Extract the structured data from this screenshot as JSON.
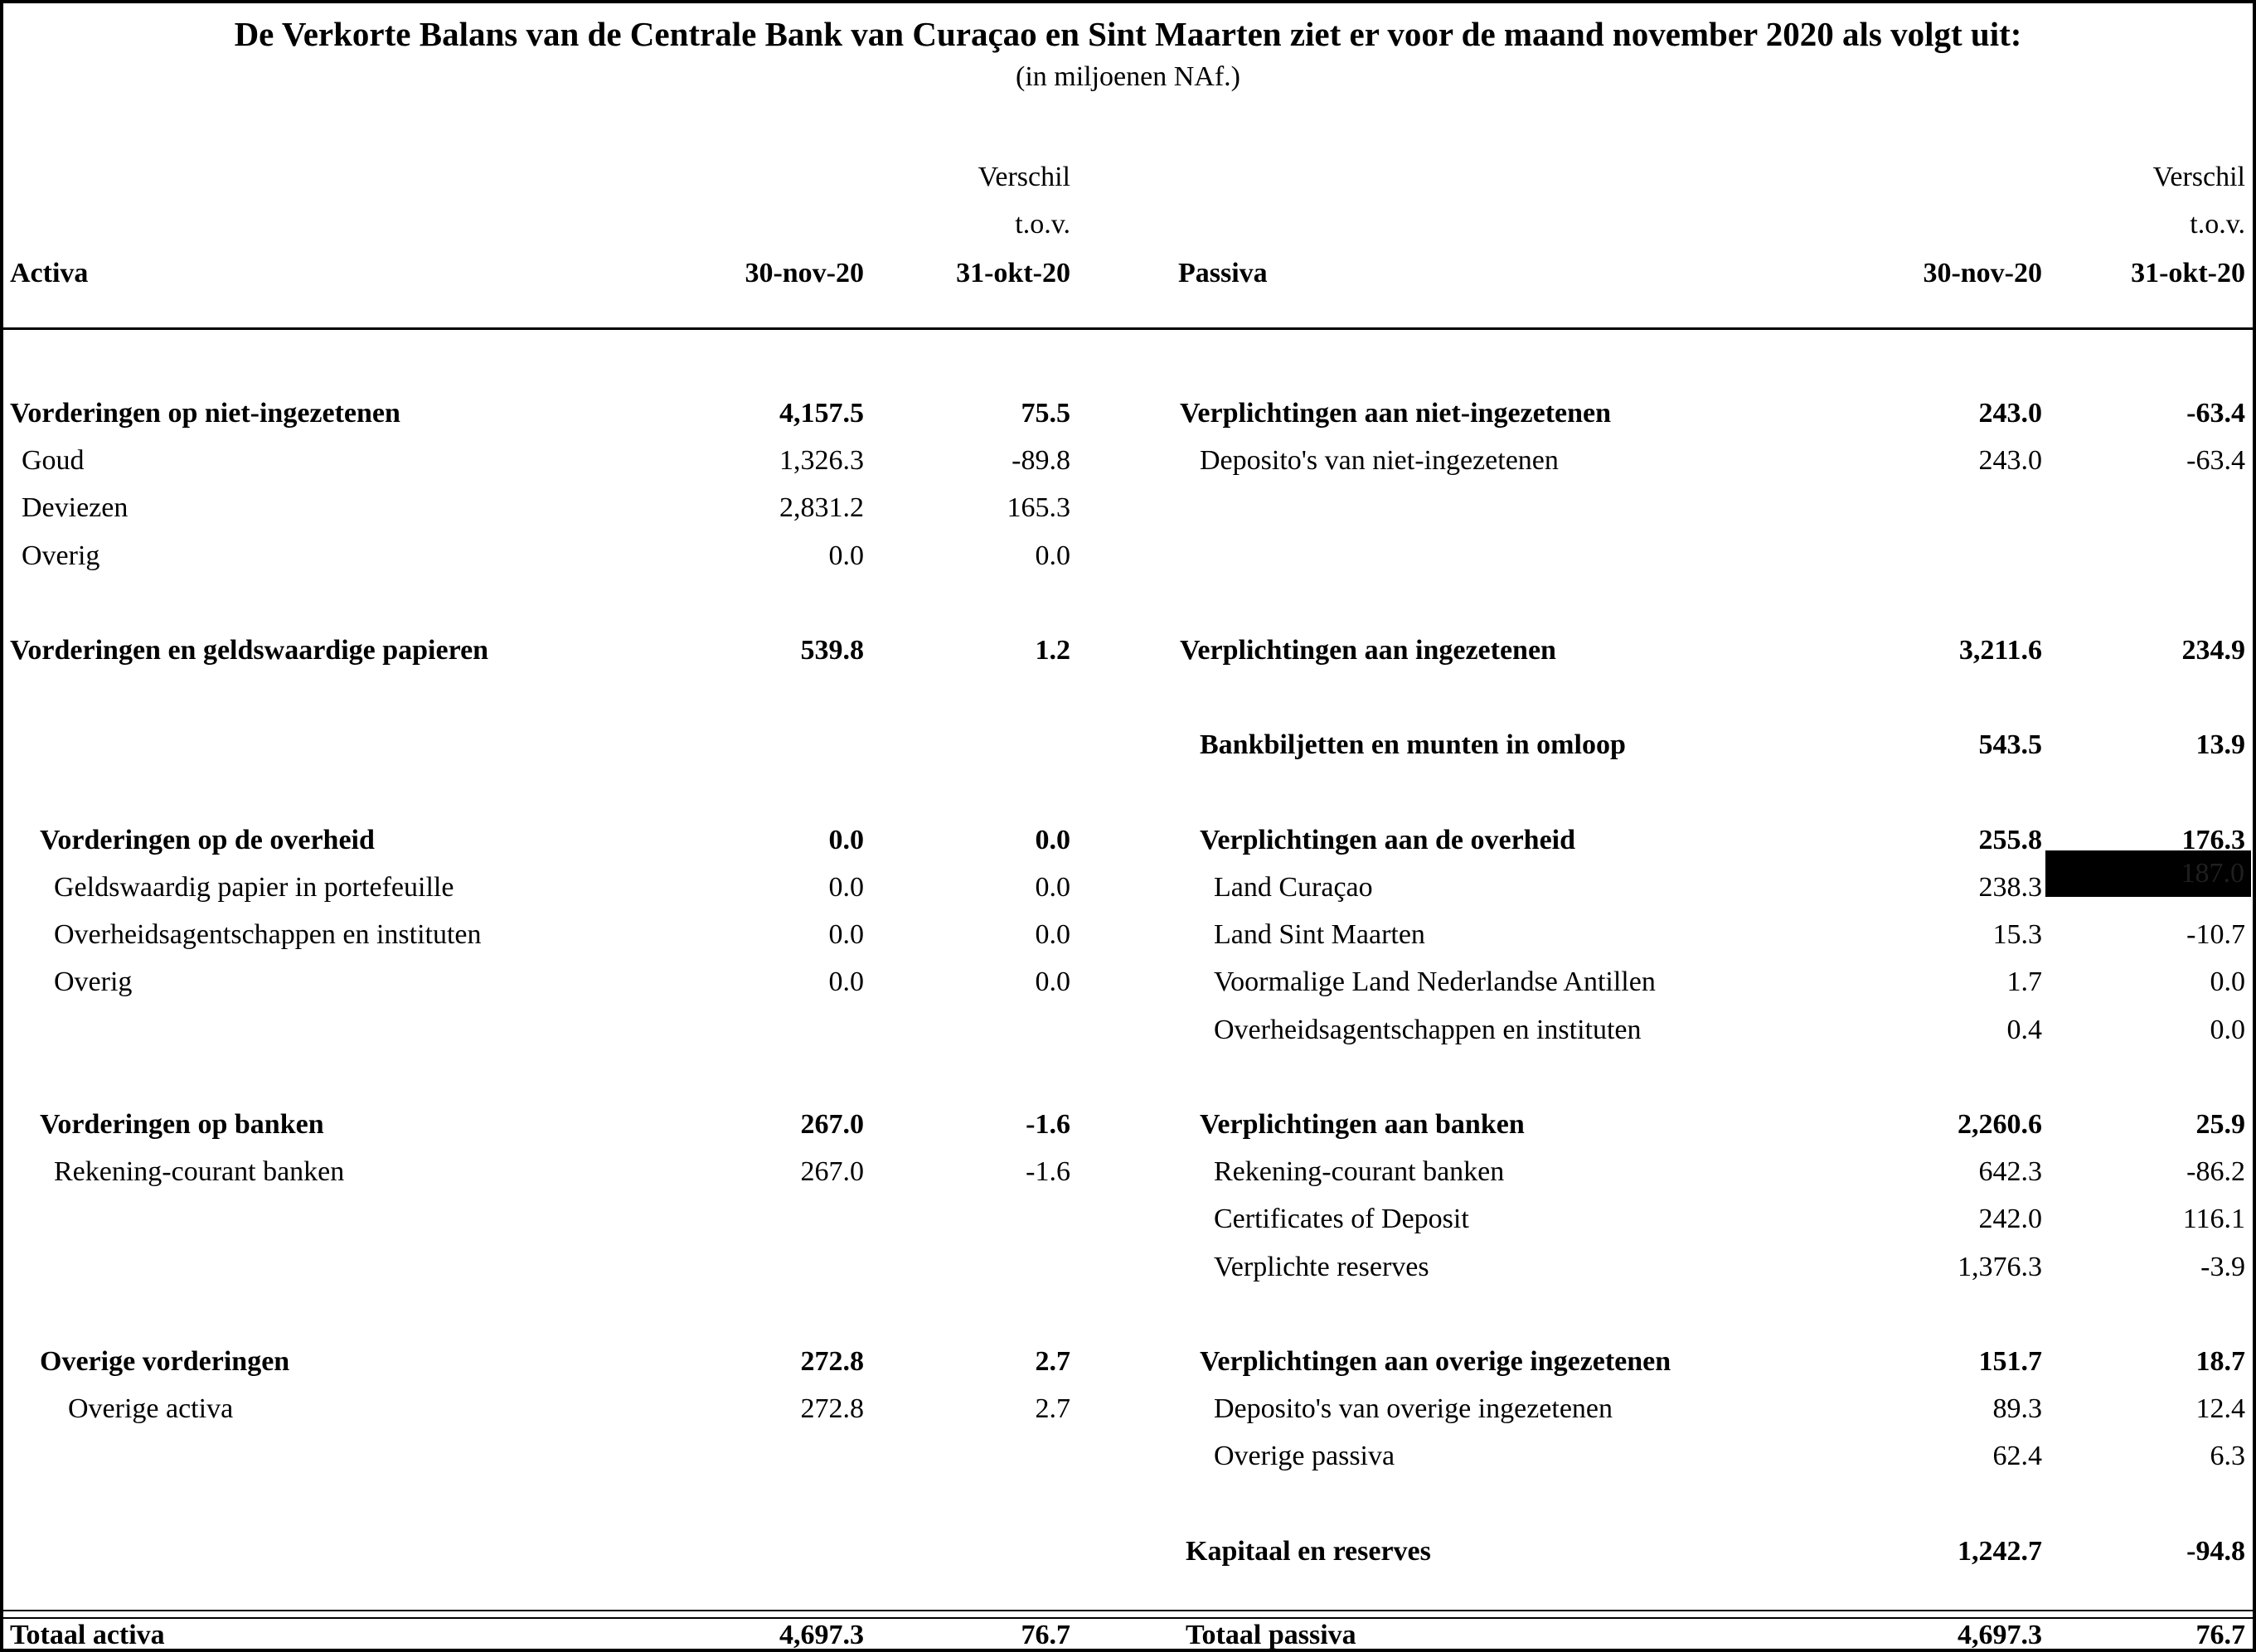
{
  "title": "De Verkorte Balans van de Centrale Bank van Curaçao en Sint Maarten ziet er voor de maand november 2020 als volgt uit:",
  "subtitle": "(in miljoenen NAf.)",
  "columns": {
    "verschil": "Verschil",
    "tov": "t.o.v.",
    "date_current": "30-nov-20",
    "date_prev": "31-okt-20"
  },
  "left": {
    "heading": "Activa",
    "total": {
      "label": "Totaal activa",
      "v1": "4,697.3",
      "v2": "76.7"
    }
  },
  "right": {
    "heading": "Passiva",
    "total": {
      "label": "Totaal passiva",
      "v1": "4,697.3",
      "v2": "76.7"
    }
  },
  "colors": {
    "text": "#000000",
    "background": "#ffffff",
    "redaction_box": "#000000",
    "redaction_faint_text": "#1f1f1f"
  },
  "slots": [
    {
      "left": {
        "label": "Vorderingen op niet-ingezetenen",
        "v1": "4,157.5",
        "v2": "75.5",
        "bold": true,
        "indent": 0
      },
      "right": {
        "label": "Verplichtingen aan niet-ingezetenen",
        "v1": "243.0",
        "v2": "-63.4",
        "bold": true,
        "indent": 0
      }
    },
    {
      "left": {
        "label": "Goud",
        "v1": "1,326.3",
        "v2": "-89.8",
        "indent": 1
      },
      "right": {
        "label": "Deposito's van niet-ingezetenen",
        "v1": "243.0",
        "v2": "-63.4",
        "indent": 2
      }
    },
    {
      "left": {
        "label": "Deviezen",
        "v1": "2,831.2",
        "v2": "165.3",
        "indent": 1
      }
    },
    {
      "left": {
        "label": "Overig",
        "v1": "0.0",
        "v2": "0.0",
        "indent": 1
      }
    },
    {},
    {
      "left": {
        "label": "Vorderingen en geldswaardige papieren",
        "v1": "539.8",
        "v2": "1.2",
        "bold": true,
        "indent": 0
      },
      "right": {
        "label": "Verplichtingen aan ingezetenen",
        "v1": "3,211.6",
        "v2": "234.9",
        "bold": true,
        "indent": 0
      }
    },
    {},
    {
      "right": {
        "label": "Bankbiljetten en munten in omloop",
        "v1": "543.5",
        "v2": "13.9",
        "bold": true,
        "indent": 2
      }
    },
    {},
    {
      "left": {
        "label": "Vorderingen op de overheid",
        "v1": "0.0",
        "v2": "0.0",
        "bold": true,
        "indent": 2
      },
      "right": {
        "label": "Verplichtingen aan de overheid",
        "v1": "255.8",
        "v2": "176.3",
        "bold": true,
        "indent": 2
      }
    },
    {
      "left": {
        "label": "Geldswaardig papier in portefeuille",
        "v1": "0.0",
        "v2": "0.0",
        "indent": 3
      },
      "right": {
        "label": "Land Curaçao",
        "v1": "238.3",
        "v2": "187.0",
        "indent": 3,
        "redacted_v2": true
      }
    },
    {
      "left": {
        "label": "Overheidsagentschappen en instituten",
        "v1": "0.0",
        "v2": "0.0",
        "indent": 3
      },
      "right": {
        "label": "Land Sint Maarten",
        "v1": "15.3",
        "v2": "-10.7",
        "indent": 3
      }
    },
    {
      "left": {
        "label": "Overig",
        "v1": "0.0",
        "v2": "0.0",
        "indent": 3
      },
      "right": {
        "label": "Voormalige Land Nederlandse Antillen",
        "v1": "1.7",
        "v2": "0.0",
        "indent": 3
      }
    },
    {
      "right": {
        "label": "Overheidsagentschappen en instituten",
        "v1": "0.4",
        "v2": "0.0",
        "indent": 3
      }
    },
    {},
    {
      "left": {
        "label": "Vorderingen op banken",
        "v1": "267.0",
        "v2": "-1.6",
        "bold": true,
        "indent": 2
      },
      "right": {
        "label": "Verplichtingen aan banken",
        "v1": "2,260.6",
        "v2": "25.9",
        "bold": true,
        "indent": 2
      }
    },
    {
      "left": {
        "label": "Rekening-courant banken",
        "v1": "267.0",
        "v2": "-1.6",
        "indent": 3
      },
      "right": {
        "label": "Rekening-courant banken",
        "v1": "642.3",
        "v2": "-86.2",
        "indent": 3
      }
    },
    {
      "right": {
        "label": "Certificates of Deposit",
        "v1": "242.0",
        "v2": "116.1",
        "indent": 3
      }
    },
    {
      "right": {
        "label": "Verplichte reserves",
        "v1": "1,376.3",
        "v2": "-3.9",
        "indent": 3
      }
    },
    {},
    {
      "left": {
        "label": "Overige vorderingen",
        "v1": "272.8",
        "v2": "2.7",
        "bold": true,
        "indent": 2
      },
      "right": {
        "label": "Verplichtingen aan overige ingezetenen",
        "v1": "151.7",
        "v2": "18.7",
        "bold": true,
        "indent": 2
      }
    },
    {
      "left": {
        "label": "Overige activa",
        "v1": "272.8",
        "v2": "2.7",
        "indent": 4
      },
      "right": {
        "label": "Deposito's van overige ingezetenen",
        "v1": "89.3",
        "v2": "12.4",
        "indent": 3
      }
    },
    {
      "right": {
        "label": "Overige passiva",
        "v1": "62.4",
        "v2": "6.3",
        "indent": 3
      }
    },
    {},
    {
      "right": {
        "label": "Kapitaal en reserves",
        "v1": "1,242.7",
        "v2": "-94.8",
        "bold": true,
        "indent": 1
      }
    }
  ]
}
